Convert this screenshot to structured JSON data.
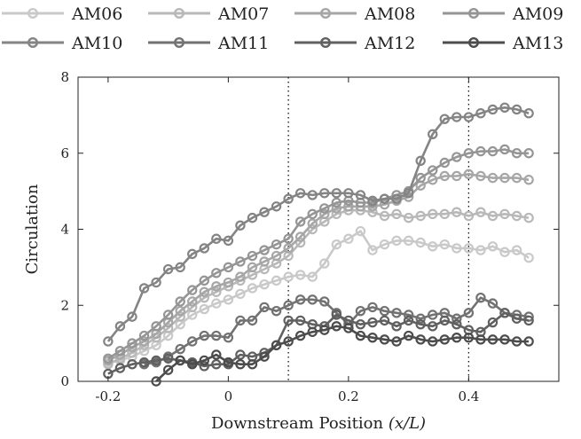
{
  "chart_data": {
    "type": "line",
    "xlabel": "Downstream Position",
    "xlabel_math": "(x/L)",
    "ylabel": "Circulation",
    "xlim": [
      -0.25,
      0.55
    ],
    "ylim": [
      0,
      8
    ],
    "xticks": [
      "-0.2",
      "0",
      "0.2",
      "0.4"
    ],
    "xtick_values": [
      -0.2,
      0,
      0.2,
      0.4
    ],
    "yticks": [
      "0",
      "2",
      "4",
      "6",
      "8"
    ],
    "ytick_values": [
      0,
      2,
      4,
      6,
      8
    ],
    "grid": false,
    "legend_position": "top",
    "vlines": [
      0.1,
      0.4
    ],
    "series": [
      {
        "name": "AM06",
        "color": "#c9c9c9",
        "x": [
          -0.2,
          -0.18,
          -0.16,
          -0.14,
          -0.12,
          -0.1,
          -0.08,
          -0.06,
          -0.04,
          -0.02,
          0,
          0.02,
          0.04,
          0.06,
          0.08,
          0.1,
          0.12,
          0.14,
          0.16,
          0.18,
          0.2,
          0.22,
          0.24,
          0.26,
          0.28,
          0.3,
          0.32,
          0.34,
          0.36,
          0.38,
          0.4,
          0.42,
          0.44,
          0.46,
          0.48,
          0.5
        ],
        "y": [
          0.5,
          0.55,
          0.65,
          0.8,
          0.95,
          1.2,
          1.5,
          1.75,
          1.9,
          2.05,
          2.15,
          2.3,
          2.45,
          2.55,
          2.65,
          2.75,
          2.8,
          2.75,
          3.1,
          3.6,
          3.75,
          3.95,
          3.45,
          3.6,
          3.7,
          3.7,
          3.65,
          3.55,
          3.6,
          3.5,
          3.5,
          3.45,
          3.55,
          3.4,
          3.45,
          3.25
        ]
      },
      {
        "name": "AM07",
        "color": "#b8b8b8",
        "x": [
          -0.2,
          -0.18,
          -0.16,
          -0.14,
          -0.12,
          -0.1,
          -0.08,
          -0.06,
          -0.04,
          -0.02,
          0,
          0.02,
          0.04,
          0.06,
          0.08,
          0.1,
          0.12,
          0.14,
          0.16,
          0.18,
          0.2,
          0.22,
          0.24,
          0.26,
          0.28,
          0.3,
          0.32,
          0.34,
          0.36,
          0.38,
          0.4,
          0.42,
          0.44,
          0.46,
          0.48,
          0.5
        ],
        "y": [
          0.45,
          0.6,
          0.75,
          0.95,
          1.15,
          1.4,
          1.7,
          1.95,
          2.2,
          2.35,
          2.5,
          2.65,
          2.8,
          2.95,
          3.1,
          3.3,
          3.65,
          4.0,
          4.2,
          4.4,
          4.5,
          4.5,
          4.45,
          4.35,
          4.4,
          4.3,
          4.35,
          4.4,
          4.4,
          4.45,
          4.35,
          4.45,
          4.35,
          4.4,
          4.35,
          4.3
        ]
      },
      {
        "name": "AM08",
        "color": "#a6a6a6",
        "x": [
          -0.2,
          -0.18,
          -0.16,
          -0.14,
          -0.12,
          -0.1,
          -0.08,
          -0.06,
          -0.04,
          -0.02,
          0,
          0.02,
          0.04,
          0.06,
          0.08,
          0.1,
          0.12,
          0.14,
          0.16,
          0.18,
          0.2,
          0.22,
          0.24,
          0.26,
          0.28,
          0.3,
          0.32,
          0.34,
          0.36,
          0.38,
          0.4,
          0.42,
          0.44,
          0.46,
          0.48,
          0.5
        ],
        "y": [
          0.55,
          0.7,
          0.9,
          1.05,
          1.25,
          1.55,
          1.85,
          2.1,
          2.35,
          2.5,
          2.6,
          2.75,
          3.0,
          3.15,
          3.3,
          3.5,
          3.8,
          4.15,
          4.4,
          4.55,
          4.6,
          4.6,
          4.6,
          4.65,
          4.75,
          4.85,
          5.15,
          5.3,
          5.4,
          5.4,
          5.45,
          5.4,
          5.35,
          5.35,
          5.35,
          5.3
        ]
      },
      {
        "name": "AM09",
        "color": "#959595",
        "x": [
          -0.2,
          -0.18,
          -0.16,
          -0.14,
          -0.12,
          -0.1,
          -0.08,
          -0.06,
          -0.04,
          -0.02,
          0,
          0.02,
          0.04,
          0.06,
          0.08,
          0.1,
          0.12,
          0.14,
          0.16,
          0.18,
          0.2,
          0.22,
          0.24,
          0.26,
          0.28,
          0.3,
          0.32,
          0.34,
          0.36,
          0.38,
          0.4,
          0.42,
          0.44,
          0.46,
          0.48,
          0.5
        ],
        "y": [
          0.6,
          0.8,
          1.0,
          1.2,
          1.45,
          1.75,
          2.1,
          2.4,
          2.65,
          2.85,
          3.0,
          3.15,
          3.3,
          3.45,
          3.6,
          3.75,
          4.2,
          4.4,
          4.55,
          4.7,
          4.75,
          4.7,
          4.7,
          4.8,
          4.9,
          5.0,
          5.35,
          5.55,
          5.75,
          5.9,
          6.0,
          6.05,
          6.05,
          6.1,
          6.0,
          6.0
        ]
      },
      {
        "name": "AM10",
        "color": "#848484",
        "x": [
          -0.2,
          -0.18,
          -0.16,
          -0.14,
          -0.12,
          -0.1,
          -0.08,
          -0.06,
          -0.04,
          -0.02,
          0,
          0.02,
          0.04,
          0.06,
          0.08,
          0.1,
          0.12,
          0.14,
          0.16,
          0.18,
          0.2,
          0.22,
          0.24,
          0.26,
          0.28,
          0.3,
          0.32,
          0.34,
          0.36,
          0.38,
          0.4,
          0.42,
          0.44,
          0.46,
          0.48,
          0.5
        ],
        "y": [
          1.05,
          1.45,
          1.7,
          2.45,
          2.6,
          2.95,
          3.0,
          3.35,
          3.5,
          3.75,
          3.7,
          4.1,
          4.3,
          4.45,
          4.6,
          4.8,
          4.95,
          4.9,
          4.95,
          4.95,
          4.95,
          4.9,
          4.75,
          4.8,
          4.8,
          4.95,
          5.8,
          6.5,
          6.9,
          6.95,
          6.95,
          7.05,
          7.15,
          7.2,
          7.15,
          7.05
        ]
      },
      {
        "name": "AM11",
        "color": "#727272",
        "x": [
          -0.14,
          -0.12,
          -0.1,
          -0.08,
          -0.06,
          -0.04,
          -0.02,
          0,
          0.02,
          0.04,
          0.06,
          0.08,
          0.1,
          0.12,
          0.14,
          0.16,
          0.18,
          0.2,
          0.22,
          0.24,
          0.26,
          0.28,
          0.3,
          0.32,
          0.34,
          0.36,
          0.38,
          0.4,
          0.42,
          0.44,
          0.46,
          0.48,
          0.5
        ],
        "y": [
          0.45,
          0.5,
          0.65,
          0.85,
          1.05,
          1.2,
          1.2,
          1.15,
          1.6,
          1.6,
          1.95,
          1.85,
          2.0,
          2.15,
          2.15,
          2.1,
          1.8,
          1.5,
          1.85,
          1.95,
          1.85,
          1.8,
          1.75,
          1.65,
          1.75,
          1.8,
          1.65,
          1.8,
          2.2,
          2.05,
          1.8,
          1.75,
          1.7
        ]
      },
      {
        "name": "AM12",
        "color": "#606060",
        "x": [
          -0.2,
          -0.18,
          -0.16,
          -0.14,
          -0.12,
          -0.1,
          -0.08,
          -0.06,
          -0.04,
          -0.02,
          0,
          0.02,
          0.04,
          0.06,
          0.08,
          0.1,
          0.12,
          0.14,
          0.16,
          0.18,
          0.2,
          0.22,
          0.24,
          0.26,
          0.28,
          0.3,
          0.32,
          0.34,
          0.36,
          0.38,
          0.4,
          0.42,
          0.44,
          0.46,
          0.48,
          0.5
        ],
        "y": [
          0.2,
          0.35,
          0.45,
          0.5,
          0.55,
          0.6,
          0.55,
          0.5,
          0.4,
          0.45,
          0.45,
          0.7,
          0.65,
          0.75,
          0.95,
          1.6,
          1.6,
          1.5,
          1.45,
          1.75,
          1.6,
          1.5,
          1.55,
          1.6,
          1.45,
          1.6,
          1.5,
          1.45,
          1.6,
          1.5,
          1.35,
          1.3,
          1.55,
          1.8,
          1.65,
          1.6
        ]
      },
      {
        "name": "AM13",
        "color": "#4c4c4c",
        "x": [
          -0.12,
          -0.1,
          -0.08,
          -0.06,
          -0.04,
          -0.02,
          0,
          0.02,
          0.04,
          0.06,
          0.08,
          0.1,
          0.12,
          0.14,
          0.16,
          0.18,
          0.2,
          0.22,
          0.24,
          0.26,
          0.28,
          0.3,
          0.32,
          0.34,
          0.36,
          0.38,
          0.4,
          0.42,
          0.44,
          0.46,
          0.48,
          0.5
        ],
        "y": [
          0.0,
          0.3,
          0.55,
          0.45,
          0.55,
          0.7,
          0.5,
          0.45,
          0.45,
          0.65,
          0.95,
          1.05,
          1.2,
          1.3,
          1.35,
          1.45,
          1.4,
          1.2,
          1.15,
          1.1,
          1.05,
          1.2,
          1.1,
          1.05,
          1.1,
          1.15,
          1.15,
          1.1,
          1.1,
          1.1,
          1.05,
          1.05
        ]
      }
    ]
  }
}
